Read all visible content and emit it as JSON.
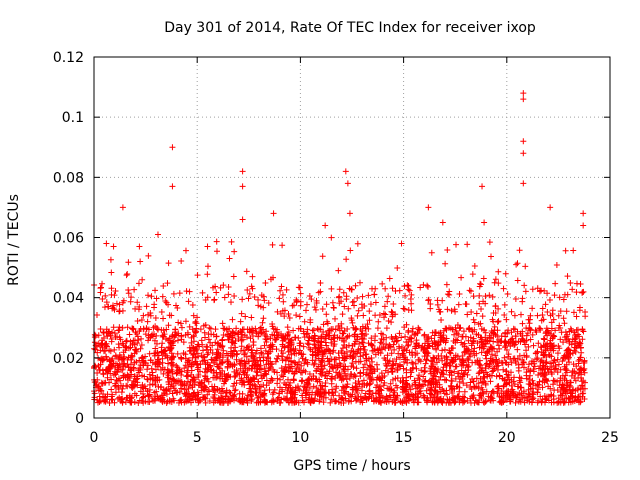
{
  "chart_data": {
    "type": "scatter",
    "title": "Day 301 of 2014, Rate Of TEC Index for receiver ixop",
    "xlabel": "GPS time / hours",
    "ylabel": "ROTI / TECUs",
    "xlim": [
      0,
      25
    ],
    "ylim": [
      0,
      0.12
    ],
    "x_ticks": [
      0,
      5,
      10,
      15,
      20,
      25
    ],
    "x_tick_labels": [
      "0",
      "5",
      "10",
      "15",
      "20",
      "25"
    ],
    "y_ticks": [
      0,
      0.02,
      0.04,
      0.06,
      0.08,
      0.1,
      0.12
    ],
    "y_tick_labels": [
      "0",
      "0.02",
      "0.04",
      "0.06",
      "0.08",
      "0.1",
      "0.12"
    ],
    "grid": true,
    "marker": "+",
    "color": "#ff0000",
    "series": [
      {
        "name": "ROTI",
        "x_range": [
          0,
          23.8
        ],
        "bulk_range": [
          0.005,
          0.03
        ],
        "notable_points": [
          {
            "x": 0.6,
            "y": 0.058
          },
          {
            "x": 1.4,
            "y": 0.07
          },
          {
            "x": 2.2,
            "y": 0.057
          },
          {
            "x": 3.1,
            "y": 0.061
          },
          {
            "x": 3.8,
            "y": 0.09
          },
          {
            "x": 3.8,
            "y": 0.077
          },
          {
            "x": 5.5,
            "y": 0.057
          },
          {
            "x": 7.2,
            "y": 0.082
          },
          {
            "x": 7.2,
            "y": 0.077
          },
          {
            "x": 7.2,
            "y": 0.066
          },
          {
            "x": 8.7,
            "y": 0.068
          },
          {
            "x": 11.2,
            "y": 0.064
          },
          {
            "x": 12.2,
            "y": 0.082
          },
          {
            "x": 12.3,
            "y": 0.078
          },
          {
            "x": 12.4,
            "y": 0.068
          },
          {
            "x": 14.9,
            "y": 0.058
          },
          {
            "x": 16.2,
            "y": 0.07
          },
          {
            "x": 16.9,
            "y": 0.065
          },
          {
            "x": 18.8,
            "y": 0.077
          },
          {
            "x": 18.9,
            "y": 0.065
          },
          {
            "x": 20.8,
            "y": 0.108
          },
          {
            "x": 20.8,
            "y": 0.106
          },
          {
            "x": 20.8,
            "y": 0.092
          },
          {
            "x": 20.8,
            "y": 0.088
          },
          {
            "x": 20.8,
            "y": 0.078
          },
          {
            "x": 22.1,
            "y": 0.07
          },
          {
            "x": 23.7,
            "y": 0.068
          },
          {
            "x": 23.7,
            "y": 0.064
          }
        ]
      }
    ]
  }
}
